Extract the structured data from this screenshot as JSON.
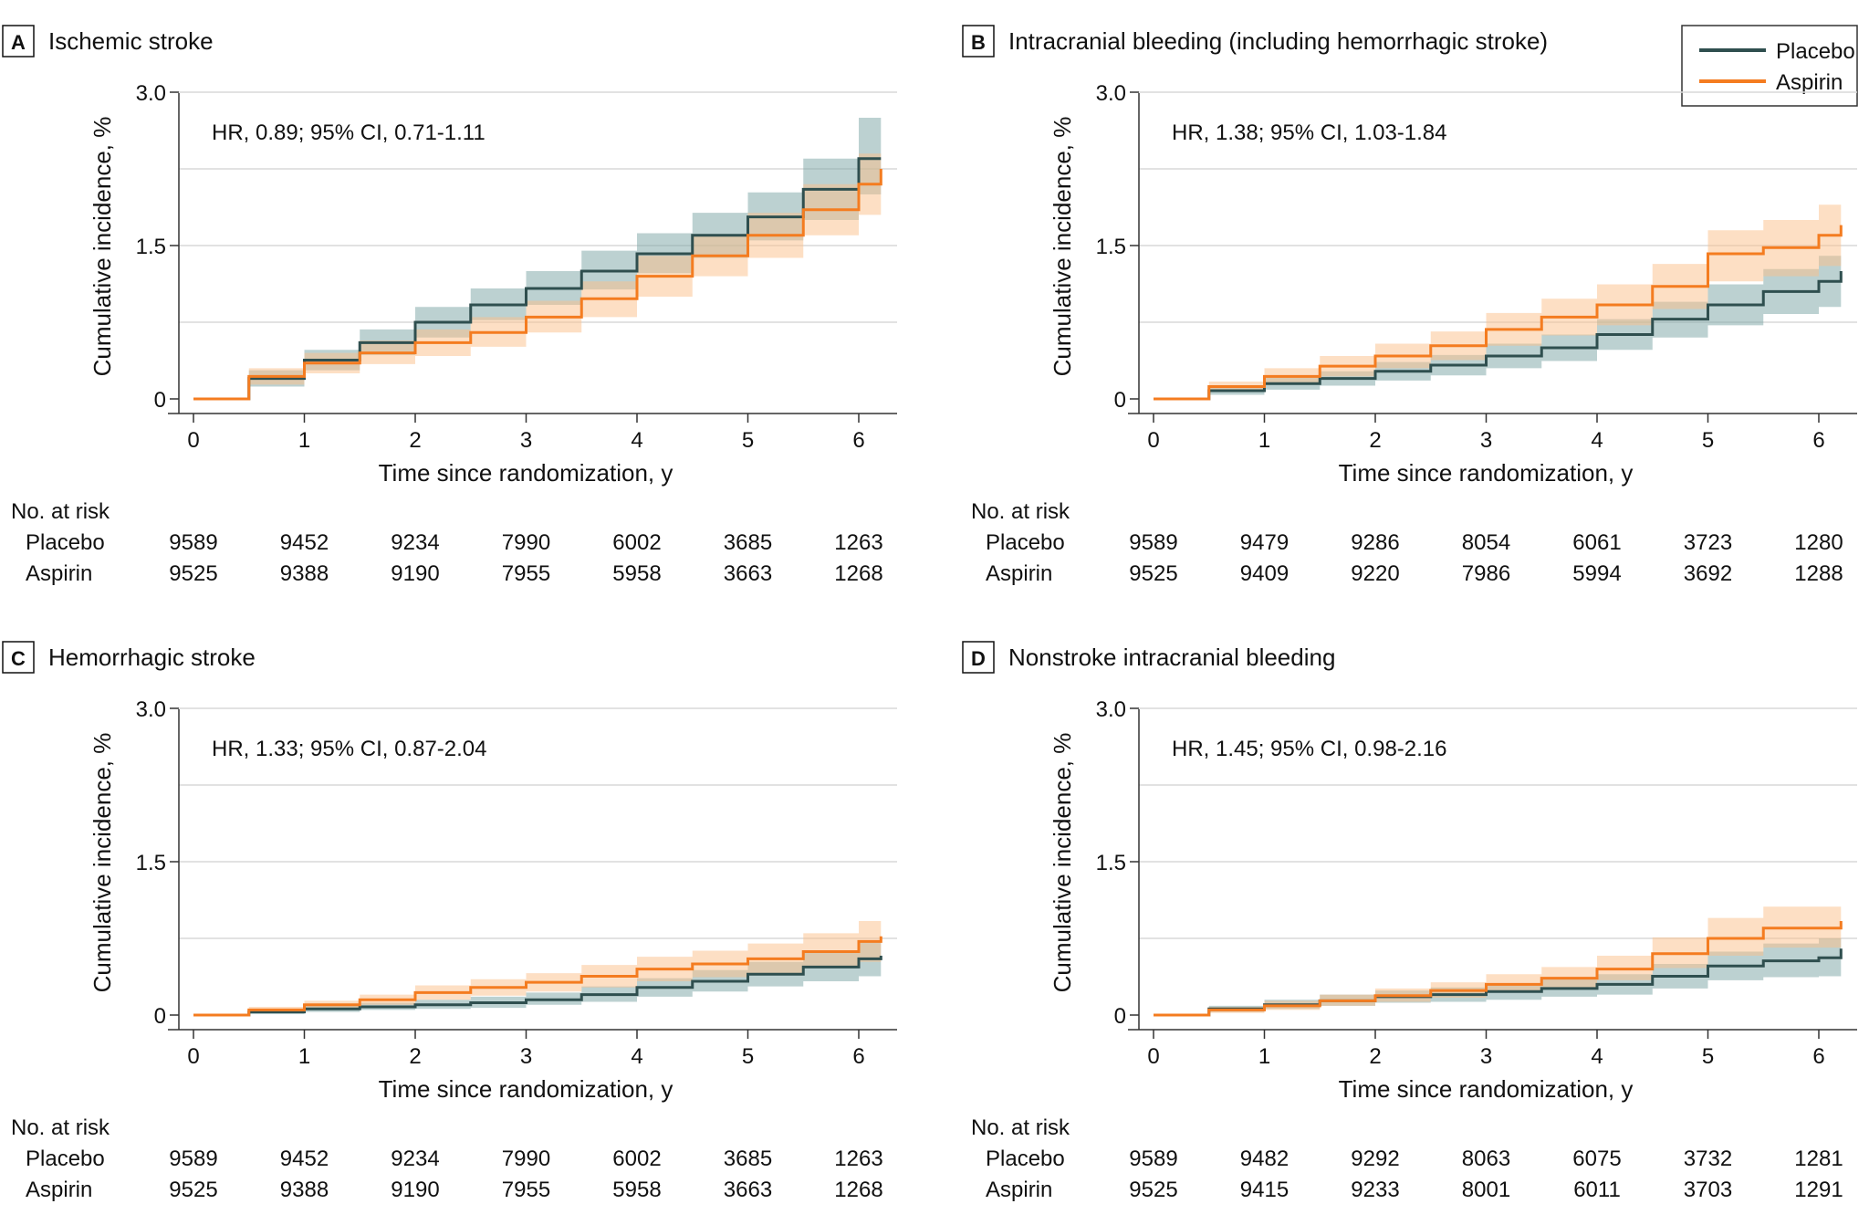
{
  "colors": {
    "placebo": "#2f4f4f",
    "aspirin": "#f47c20",
    "grid": "#d9d9d9",
    "axis": "#333333"
  },
  "legend": {
    "placebo": "Placebo",
    "aspirin": "Aspirin"
  },
  "chart_data": [
    {
      "type": "line",
      "panel": "A",
      "title": "Ischemic stroke",
      "annotation": "HR, 0.89; 95% CI, 0.71-1.11",
      "xlabel": "Time since randomization, y",
      "ylabel": "Cumulative incidence, %",
      "xlim": [
        0,
        6.2
      ],
      "ylim": [
        0,
        3.0
      ],
      "xticks": [
        "0",
        "1",
        "2",
        "3",
        "4",
        "5",
        "6"
      ],
      "yticks": [
        "0",
        "1.5",
        "3.0"
      ],
      "gridlines": [
        0.75,
        1.5,
        2.25,
        3.0
      ],
      "series": [
        {
          "name": "Placebo",
          "x": [
            0,
            0.5,
            1,
            1.5,
            2,
            2.5,
            3,
            3.5,
            4,
            4.5,
            5,
            5.5,
            6,
            6.2
          ],
          "y": [
            0,
            0.2,
            0.38,
            0.55,
            0.75,
            0.92,
            1.08,
            1.25,
            1.42,
            1.6,
            1.78,
            2.05,
            2.35,
            2.35
          ],
          "ci_low": [
            0,
            0.12,
            0.28,
            0.43,
            0.6,
            0.77,
            0.92,
            1.07,
            1.23,
            1.38,
            1.55,
            1.75,
            2.0,
            2.0
          ],
          "ci_high": [
            0,
            0.28,
            0.48,
            0.68,
            0.9,
            1.08,
            1.25,
            1.45,
            1.62,
            1.82,
            2.02,
            2.35,
            2.75,
            2.75
          ]
        },
        {
          "name": "Aspirin",
          "x": [
            0,
            0.5,
            1,
            1.5,
            2,
            2.5,
            3,
            3.5,
            4,
            4.5,
            5,
            5.5,
            6,
            6.2
          ],
          "y": [
            0,
            0.22,
            0.35,
            0.45,
            0.55,
            0.65,
            0.8,
            0.98,
            1.2,
            1.4,
            1.6,
            1.85,
            2.1,
            2.25
          ],
          "ci_low": [
            0,
            0.14,
            0.25,
            0.34,
            0.42,
            0.51,
            0.65,
            0.8,
            1.0,
            1.2,
            1.38,
            1.6,
            1.8,
            1.85
          ],
          "ci_high": [
            0,
            0.3,
            0.45,
            0.57,
            0.68,
            0.8,
            0.96,
            1.15,
            1.4,
            1.6,
            1.82,
            2.1,
            2.4,
            2.55
          ]
        }
      ],
      "risk_table": {
        "header": "No. at risk",
        "rows": [
          {
            "label": "Placebo",
            "values": [
              "9589",
              "9452",
              "9234",
              "7990",
              "6002",
              "3685",
              "1263"
            ]
          },
          {
            "label": "Aspirin",
            "values": [
              "9525",
              "9388",
              "9190",
              "7955",
              "5958",
              "3663",
              "1268"
            ]
          }
        ]
      }
    },
    {
      "type": "line",
      "panel": "B",
      "title": "Intracranial bleeding (including hemorrhagic stroke)",
      "annotation": "HR, 1.38; 95% CI, 1.03-1.84",
      "xlabel": "Time since randomization, y",
      "ylabel": "Cumulative incidence, %",
      "xlim": [
        0,
        6.2
      ],
      "ylim": [
        0,
        3.0
      ],
      "xticks": [
        "0",
        "1",
        "2",
        "3",
        "4",
        "5",
        "6"
      ],
      "yticks": [
        "0",
        "1.5",
        "3.0"
      ],
      "gridlines": [
        0.75,
        1.5,
        2.25,
        3.0
      ],
      "series": [
        {
          "name": "Placebo",
          "x": [
            0,
            0.5,
            1,
            1.5,
            2,
            2.5,
            3,
            3.5,
            4,
            4.5,
            5,
            5.5,
            6,
            6.2
          ],
          "y": [
            0,
            0.08,
            0.15,
            0.2,
            0.27,
            0.33,
            0.42,
            0.5,
            0.63,
            0.78,
            0.92,
            1.05,
            1.15,
            1.25
          ],
          "ci_low": [
            0,
            0.04,
            0.09,
            0.13,
            0.18,
            0.23,
            0.3,
            0.37,
            0.48,
            0.6,
            0.72,
            0.83,
            0.9,
            0.9
          ],
          "ci_high": [
            0,
            0.12,
            0.21,
            0.27,
            0.36,
            0.43,
            0.54,
            0.63,
            0.78,
            0.95,
            1.12,
            1.27,
            1.4,
            1.6
          ]
        },
        {
          "name": "Aspirin",
          "x": [
            0,
            0.5,
            1,
            1.5,
            2,
            2.5,
            3,
            3.5,
            4,
            4.5,
            5,
            5.5,
            6,
            6.2
          ],
          "y": [
            0,
            0.12,
            0.22,
            0.32,
            0.42,
            0.52,
            0.68,
            0.8,
            0.92,
            1.1,
            1.42,
            1.48,
            1.6,
            1.7
          ],
          "ci_low": [
            0,
            0.07,
            0.14,
            0.22,
            0.3,
            0.38,
            0.52,
            0.62,
            0.72,
            0.88,
            1.15,
            1.2,
            1.3,
            1.35
          ],
          "ci_high": [
            0,
            0.17,
            0.3,
            0.42,
            0.54,
            0.66,
            0.84,
            0.98,
            1.12,
            1.32,
            1.65,
            1.75,
            1.9,
            2.1
          ]
        }
      ],
      "risk_table": {
        "header": "No. at risk",
        "rows": [
          {
            "label": "Placebo",
            "values": [
              "9589",
              "9479",
              "9286",
              "8054",
              "6061",
              "3723",
              "1280"
            ]
          },
          {
            "label": "Aspirin",
            "values": [
              "9525",
              "9409",
              "9220",
              "7986",
              "5994",
              "3692",
              "1288"
            ]
          }
        ]
      }
    },
    {
      "type": "line",
      "panel": "C",
      "title": "Hemorrhagic stroke",
      "annotation": "HR, 1.33; 95% CI, 0.87-2.04",
      "xlabel": "Time since randomization, y",
      "ylabel": "Cumulative incidence, %",
      "xlim": [
        0,
        6.2
      ],
      "ylim": [
        0,
        3.0
      ],
      "xticks": [
        "0",
        "1",
        "2",
        "3",
        "4",
        "5",
        "6"
      ],
      "yticks": [
        "0",
        "1.5",
        "3.0"
      ],
      "gridlines": [
        0.75,
        1.5,
        2.25,
        3.0
      ],
      "series": [
        {
          "name": "Placebo",
          "x": [
            0,
            0.5,
            1,
            1.5,
            2,
            2.5,
            3,
            3.5,
            4,
            4.5,
            5,
            5.5,
            6,
            6.2
          ],
          "y": [
            0,
            0.03,
            0.06,
            0.08,
            0.1,
            0.12,
            0.15,
            0.2,
            0.27,
            0.33,
            0.4,
            0.47,
            0.55,
            0.58
          ],
          "ci_low": [
            0,
            0.01,
            0.03,
            0.05,
            0.06,
            0.07,
            0.1,
            0.13,
            0.18,
            0.23,
            0.28,
            0.33,
            0.38,
            0.38
          ],
          "ci_high": [
            0,
            0.05,
            0.1,
            0.12,
            0.15,
            0.18,
            0.22,
            0.28,
            0.36,
            0.44,
            0.52,
            0.62,
            0.72,
            0.8
          ]
        },
        {
          "name": "Aspirin",
          "x": [
            0,
            0.5,
            1,
            1.5,
            2,
            2.5,
            3,
            3.5,
            4,
            4.5,
            5,
            5.5,
            6,
            6.2
          ],
          "y": [
            0,
            0.05,
            0.1,
            0.15,
            0.22,
            0.27,
            0.32,
            0.38,
            0.45,
            0.5,
            0.55,
            0.62,
            0.72,
            0.77
          ],
          "ci_low": [
            0,
            0.02,
            0.06,
            0.1,
            0.15,
            0.19,
            0.23,
            0.27,
            0.33,
            0.37,
            0.41,
            0.46,
            0.52,
            0.52
          ],
          "ci_high": [
            0,
            0.08,
            0.14,
            0.2,
            0.29,
            0.35,
            0.41,
            0.49,
            0.57,
            0.63,
            0.7,
            0.8,
            0.92,
            1.02
          ]
        }
      ],
      "risk_table": {
        "header": "No. at risk",
        "rows": [
          {
            "label": "Placebo",
            "values": [
              "9589",
              "9452",
              "9234",
              "7990",
              "6002",
              "3685",
              "1263"
            ]
          },
          {
            "label": "Aspirin",
            "values": [
              "9525",
              "9388",
              "9190",
              "7955",
              "5958",
              "3663",
              "1268"
            ]
          }
        ]
      }
    },
    {
      "type": "line",
      "panel": "D",
      "title": "Nonstroke intracranial bleeding",
      "annotation": "HR, 1.45; 95% CI, 0.98-2.16",
      "xlabel": "Time since randomization, y",
      "ylabel": "Cumulative incidence, %",
      "xlim": [
        0,
        6.2
      ],
      "ylim": [
        0,
        3.0
      ],
      "xticks": [
        "0",
        "1",
        "2",
        "3",
        "4",
        "5",
        "6"
      ],
      "yticks": [
        "0",
        "1.5",
        "3.0"
      ],
      "gridlines": [
        0.75,
        1.5,
        2.25,
        3.0
      ],
      "series": [
        {
          "name": "Placebo",
          "x": [
            0,
            0.5,
            1,
            1.5,
            2,
            2.5,
            3,
            3.5,
            4,
            4.5,
            5,
            5.5,
            6,
            6.2
          ],
          "y": [
            0,
            0.06,
            0.1,
            0.14,
            0.18,
            0.2,
            0.23,
            0.26,
            0.3,
            0.38,
            0.48,
            0.53,
            0.56,
            0.65
          ],
          "ci_low": [
            0,
            0.03,
            0.06,
            0.09,
            0.12,
            0.13,
            0.15,
            0.18,
            0.2,
            0.26,
            0.34,
            0.37,
            0.38,
            0.4
          ],
          "ci_high": [
            0,
            0.09,
            0.15,
            0.2,
            0.24,
            0.27,
            0.31,
            0.35,
            0.4,
            0.5,
            0.62,
            0.7,
            0.75,
            0.9
          ]
        },
        {
          "name": "Aspirin",
          "x": [
            0,
            0.5,
            1,
            1.5,
            2,
            2.5,
            3,
            3.5,
            4,
            4.5,
            5,
            5.5,
            6,
            6.2
          ],
          "y": [
            0,
            0.05,
            0.09,
            0.14,
            0.19,
            0.24,
            0.3,
            0.36,
            0.45,
            0.6,
            0.75,
            0.85,
            0.85,
            0.92
          ],
          "ci_low": [
            0,
            0.02,
            0.05,
            0.09,
            0.13,
            0.17,
            0.22,
            0.27,
            0.34,
            0.46,
            0.58,
            0.66,
            0.66,
            0.68
          ],
          "ci_high": [
            0,
            0.08,
            0.14,
            0.2,
            0.26,
            0.32,
            0.4,
            0.47,
            0.58,
            0.76,
            0.95,
            1.06,
            1.06,
            1.2
          ]
        }
      ],
      "risk_table": {
        "header": "No. at risk",
        "rows": [
          {
            "label": "Placebo",
            "values": [
              "9589",
              "9482",
              "9292",
              "8063",
              "6075",
              "3732",
              "1281"
            ]
          },
          {
            "label": "Aspirin",
            "values": [
              "9525",
              "9415",
              "9233",
              "8001",
              "6011",
              "3703",
              "1291"
            ]
          }
        ]
      }
    }
  ]
}
